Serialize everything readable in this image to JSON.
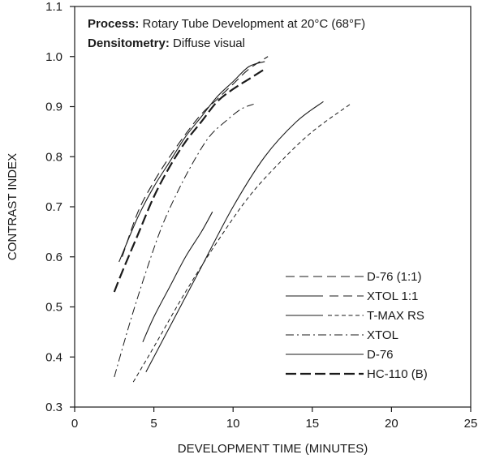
{
  "chart_data": {
    "type": "line",
    "title": "",
    "info": [
      {
        "label": "Process:",
        "value": "Rotary Tube Development at 20°C (68°F)"
      },
      {
        "label": "Densitometry:",
        "value": "Diffuse visual"
      }
    ],
    "xlabel": "DEVELOPMENT TIME (MINUTES)",
    "ylabel": "CONTRAST INDEX",
    "xlim": [
      0,
      25
    ],
    "ylim": [
      0.3,
      1.1
    ],
    "xticks": [
      0,
      5,
      10,
      15,
      20,
      25
    ],
    "yticks": [
      0.3,
      0.4,
      0.5,
      0.6,
      0.7,
      0.8,
      0.9,
      1.0,
      1.1
    ],
    "ytick_labels": [
      "0.3",
      "0.4",
      "0.5",
      "0.6",
      "0.7",
      "0.8",
      "0.9",
      "1.0",
      "1.1"
    ],
    "grid": false,
    "legend_position": "lower-right",
    "series": [
      {
        "name": "D-76 (1:1)",
        "style": "long-dash",
        "x": [
          3.0,
          4.0,
          5.0,
          6.0,
          7.0,
          8.0,
          9.0,
          10.0,
          11.0,
          12.2
        ],
        "y": [
          0.6,
          0.69,
          0.75,
          0.8,
          0.845,
          0.885,
          0.915,
          0.945,
          0.975,
          1.0
        ]
      },
      {
        "name": "XTOL 1:1",
        "style": "solid-then-long-dash",
        "x": [
          2.8,
          4.0,
          5.0,
          6.0,
          7.0,
          8.0,
          9.0,
          10.0,
          11.0,
          12.0
        ],
        "y": [
          0.59,
          0.68,
          0.74,
          0.79,
          0.84,
          0.88,
          0.92,
          0.95,
          0.98,
          0.99
        ]
      },
      {
        "name": "T-MAX RS",
        "style": "solid-then-short-dash",
        "x": [
          4.5,
          6.0,
          8.0,
          10.0,
          12.0,
          14.0,
          15.7
        ],
        "y": [
          0.37,
          0.46,
          0.58,
          0.7,
          0.8,
          0.87,
          0.91
        ]
      },
      {
        "name": "XTOL",
        "style": "dash-dot",
        "x": [
          2.5,
          3.5,
          4.5,
          5.5,
          6.5,
          7.5,
          8.5,
          9.5,
          10.5,
          11.3
        ],
        "y": [
          0.36,
          0.47,
          0.57,
          0.66,
          0.73,
          0.79,
          0.84,
          0.87,
          0.895,
          0.905
        ]
      },
      {
        "name": "D-76",
        "style": "solid",
        "x": [
          4.3,
          5.0,
          6.0,
          7.0,
          8.0,
          8.7
        ],
        "y": [
          0.43,
          0.48,
          0.54,
          0.6,
          0.65,
          0.69
        ]
      },
      {
        "name": "HC-110 (B)",
        "style": "bold-long-dash",
        "x": [
          2.5,
          3.0,
          4.0,
          5.0,
          6.0,
          7.0,
          8.0,
          9.0,
          10.0,
          11.0,
          12.0
        ],
        "y": [
          0.53,
          0.57,
          0.645,
          0.72,
          0.78,
          0.83,
          0.87,
          0.91,
          0.935,
          0.955,
          0.975
        ]
      },
      {
        "name": "",
        "style": "short-dash",
        "x": [
          3.7,
          5.0,
          7.0,
          9.0,
          11.0,
          13.0,
          15.0,
          17.4
        ],
        "y": [
          0.35,
          0.42,
          0.53,
          0.63,
          0.72,
          0.79,
          0.85,
          0.905
        ]
      }
    ]
  }
}
